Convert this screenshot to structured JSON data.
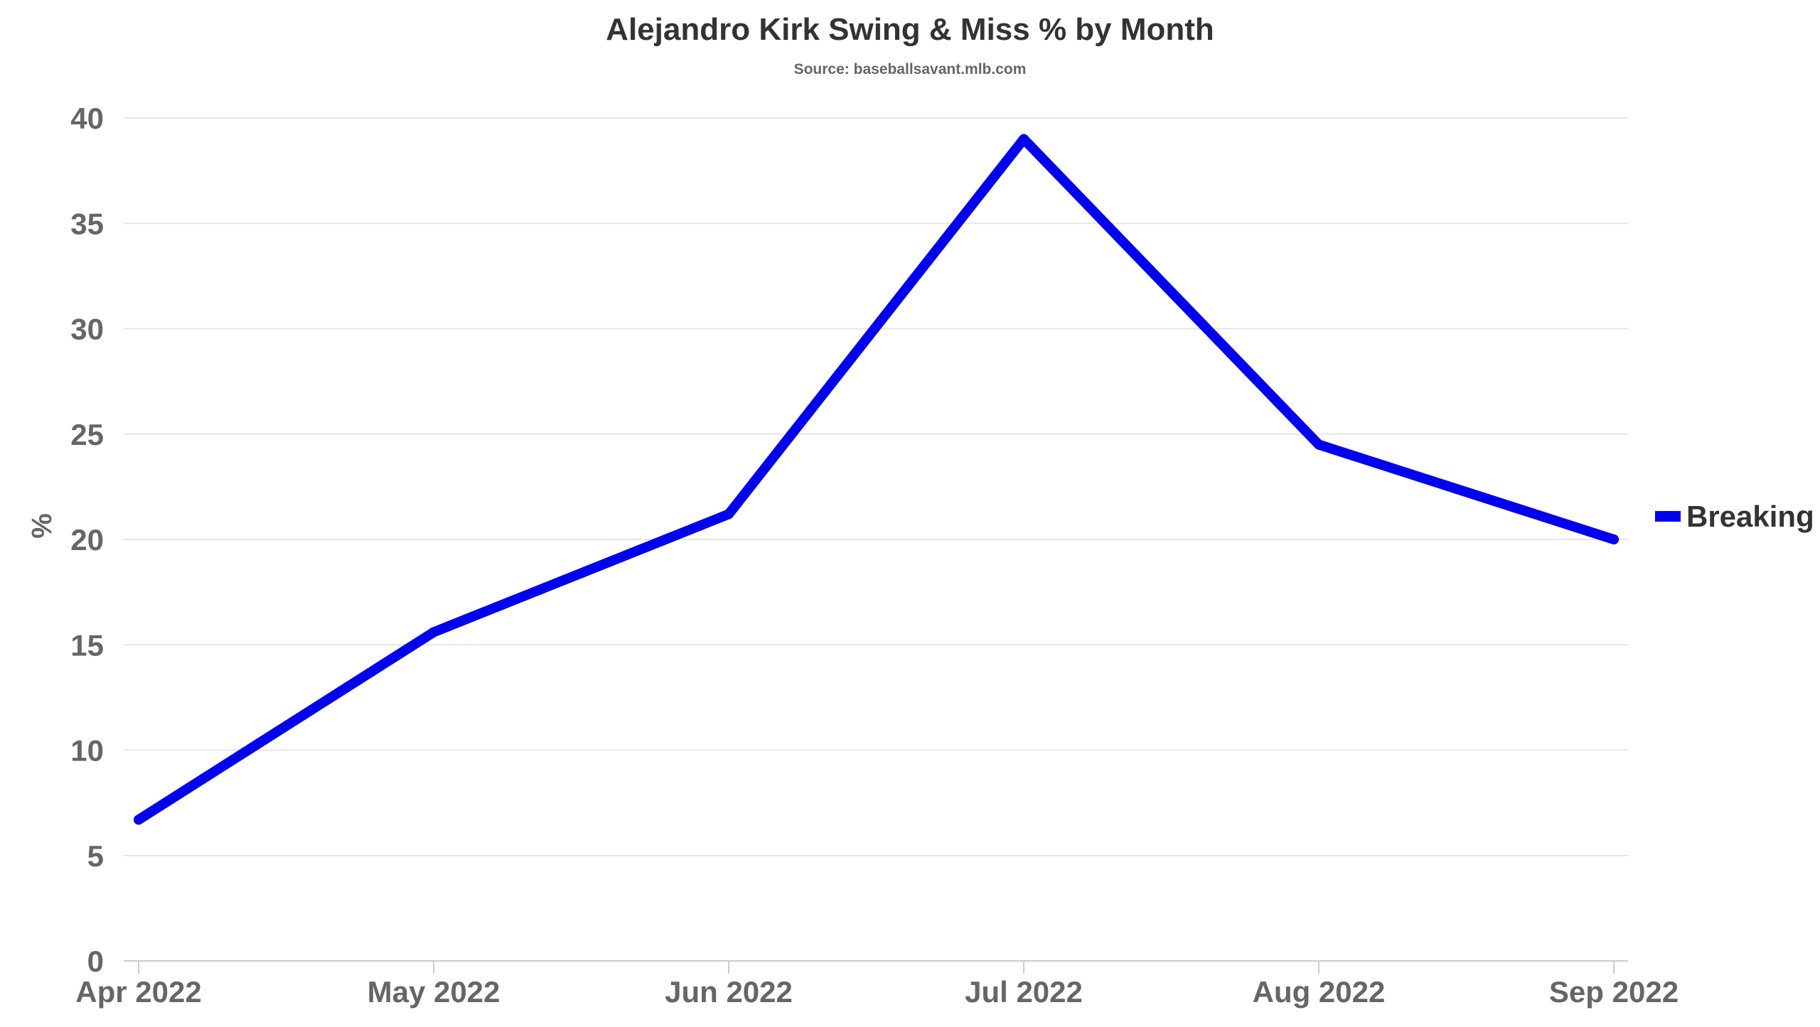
{
  "chart_data": {
    "type": "line",
    "title": "Alejandro Kirk Swing & Miss % by Month",
    "subtitle": "Source: baseballsavant.mlb.com",
    "xlabel": "",
    "ylabel": "%",
    "categories": [
      "Apr 2022",
      "May 2022",
      "Jun 2022",
      "Jul 2022",
      "Aug 2022",
      "Sep 2022"
    ],
    "series": [
      {
        "name": "Breaking",
        "color": "#0000ee",
        "values": [
          6.7,
          15.6,
          21.2,
          39.0,
          24.5,
          20.0
        ]
      }
    ],
    "ylim": [
      0,
      40
    ],
    "yticks": [
      0,
      5,
      10,
      15,
      20,
      25,
      30,
      35,
      40
    ],
    "grid": true,
    "legend_position": "right"
  }
}
